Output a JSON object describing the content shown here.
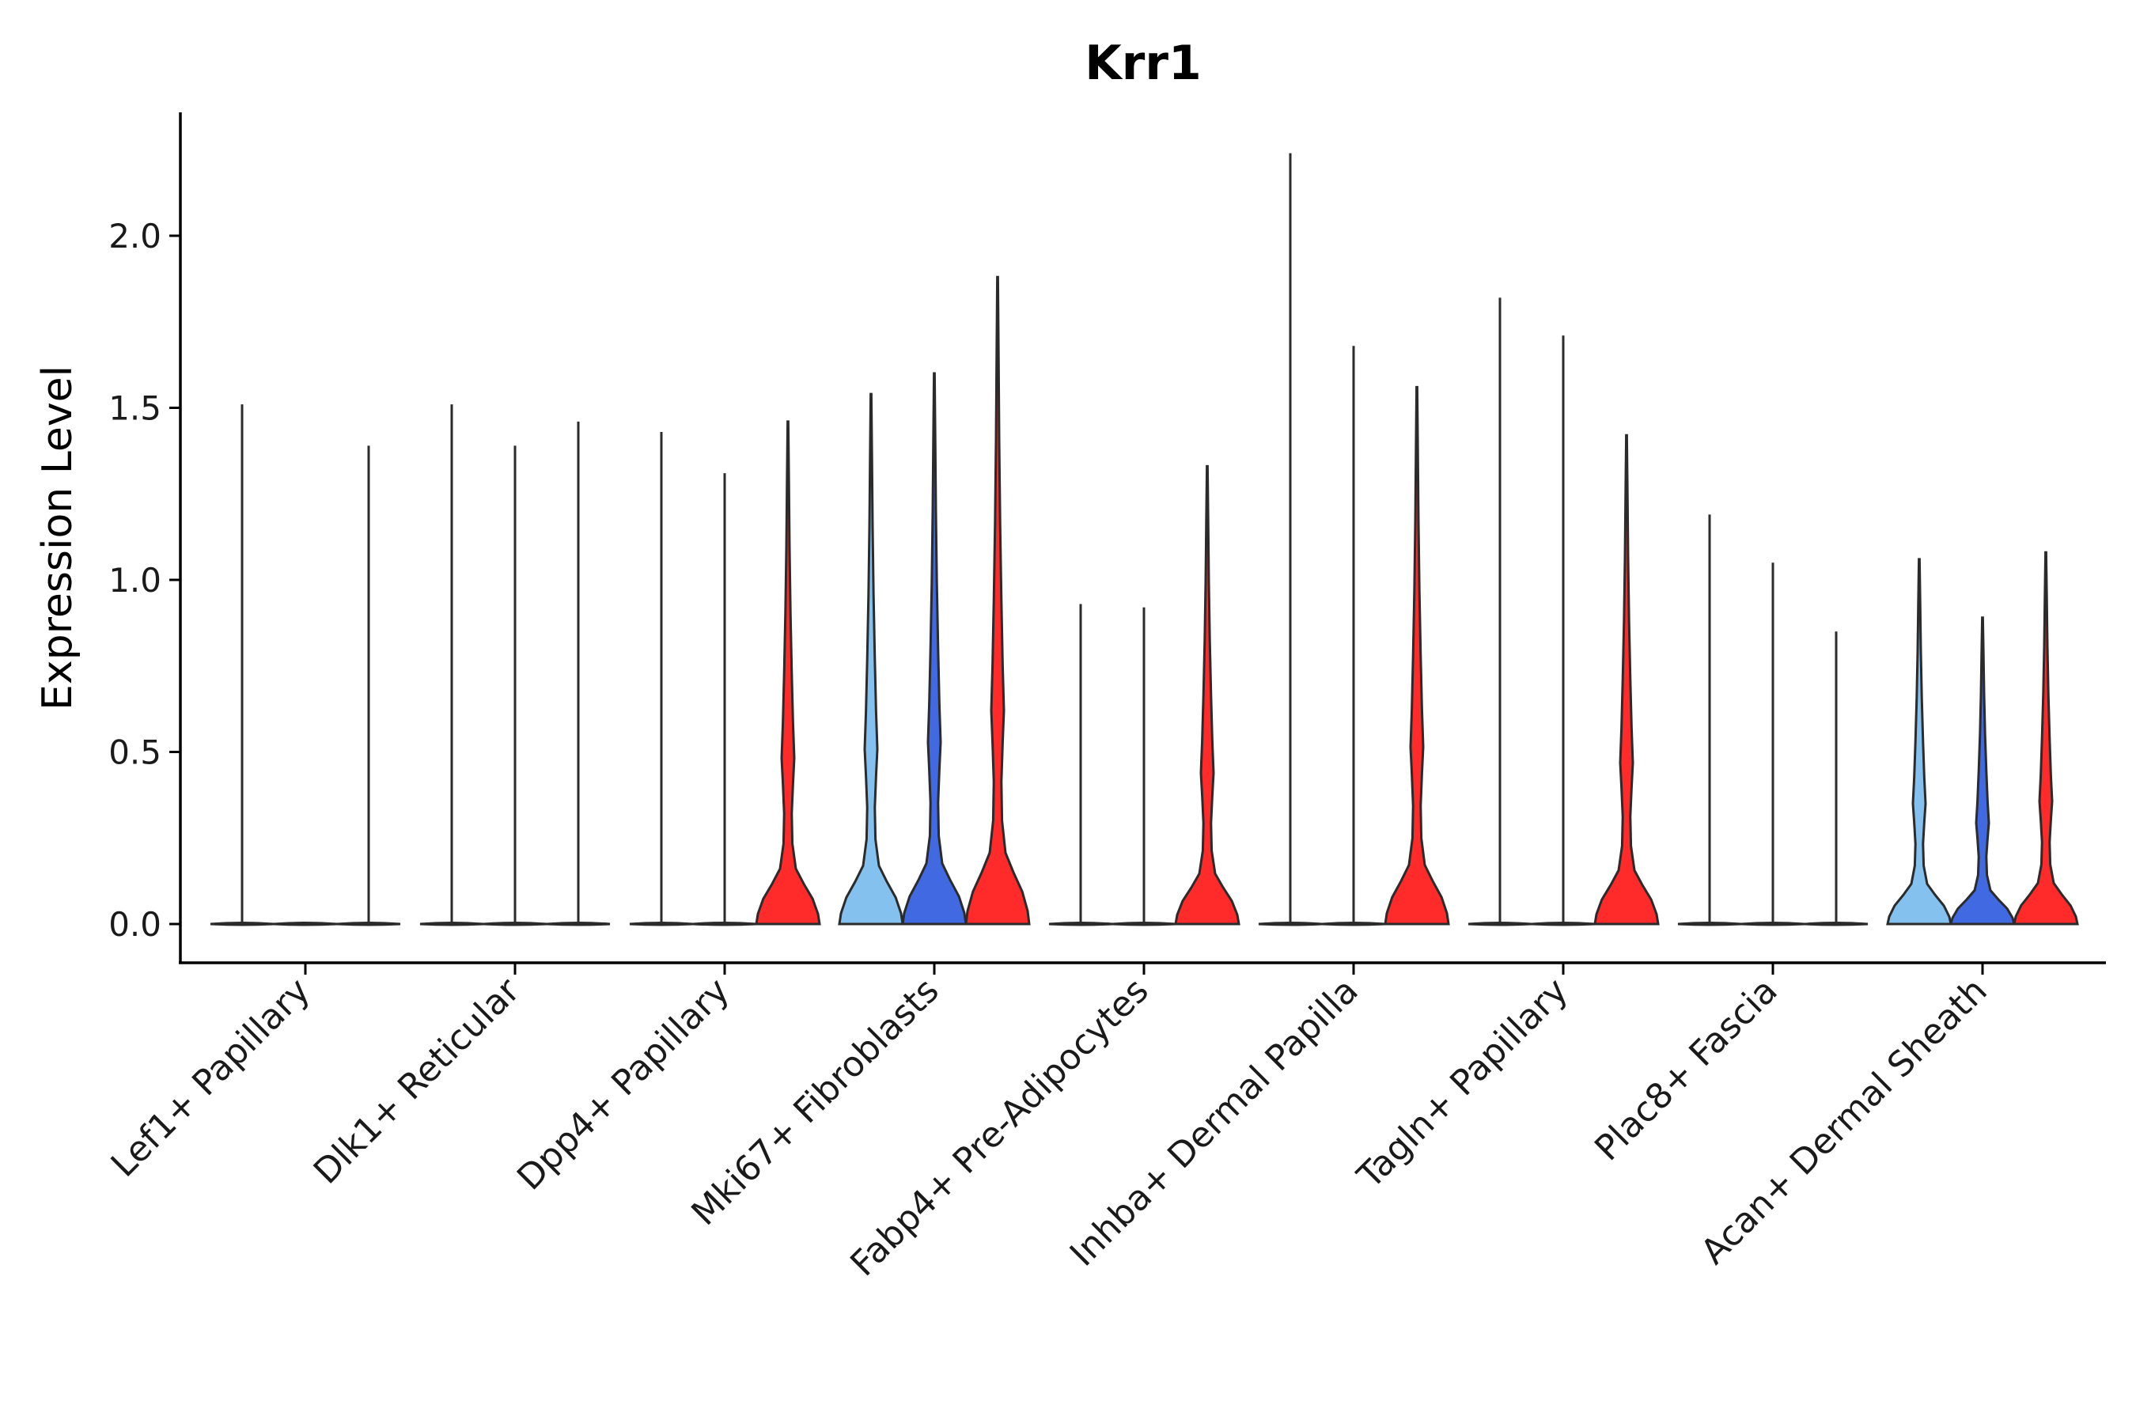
{
  "chart_data": {
    "type": "violin",
    "title": "Krr1",
    "xlabel": "",
    "ylabel": "Expression Level",
    "ylim": [
      -0.11,
      2.35
    ],
    "yticks": [
      0.0,
      0.5,
      1.0,
      1.5,
      2.0
    ],
    "ytick_labels": [
      "0.0",
      "0.5",
      "1.0",
      "1.5",
      "2.0"
    ],
    "group_colors": [
      "#85C1EE",
      "#4169E1",
      "#FF2A2A"
    ],
    "categories": [
      "Lef1+ Papillary",
      "Dlk1+ Reticular",
      "Dpp4+ Papillary",
      "Mki67+ Fibroblasts",
      "Fabp4+ Pre-Adipocytes",
      "Inhba+ Dermal Papilla",
      "Tagln+ Papillary",
      "Plac8+ Fascia",
      "Acan+ Dermal Sheath"
    ],
    "violins": [
      [
        {
          "max": 1.51,
          "mode": "flat"
        },
        {
          "max": 0.0,
          "mode": "flat"
        },
        {
          "max": 1.39,
          "mode": "flat"
        }
      ],
      [
        {
          "max": 1.51,
          "mode": "flat"
        },
        {
          "max": 1.39,
          "mode": "flat"
        },
        {
          "max": 1.46,
          "mode": "flat"
        }
      ],
      [
        {
          "max": 1.43,
          "mode": "flat"
        },
        {
          "max": 1.31,
          "mode": "flat"
        },
        {
          "max": 1.46,
          "mode": "full"
        }
      ],
      [
        {
          "max": 1.54,
          "mode": "full"
        },
        {
          "max": 1.6,
          "mode": "full"
        },
        {
          "max": 1.88,
          "mode": "full"
        }
      ],
      [
        {
          "max": 0.93,
          "mode": "flat"
        },
        {
          "max": 0.92,
          "mode": "flat"
        },
        {
          "max": 1.33,
          "mode": "full"
        }
      ],
      [
        {
          "max": 2.24,
          "mode": "flat"
        },
        {
          "max": 1.68,
          "mode": "flat"
        },
        {
          "max": 1.56,
          "mode": "full"
        }
      ],
      [
        {
          "max": 1.82,
          "mode": "flat"
        },
        {
          "max": 1.71,
          "mode": "flat"
        },
        {
          "max": 1.42,
          "mode": "full"
        }
      ],
      [
        {
          "max": 1.19,
          "mode": "flat"
        },
        {
          "max": 1.05,
          "mode": "flat"
        },
        {
          "max": 0.85,
          "mode": "flat"
        }
      ],
      [
        {
          "max": 1.06,
          "mode": "full"
        },
        {
          "max": 0.89,
          "mode": "full"
        },
        {
          "max": 1.08,
          "mode": "full"
        }
      ]
    ]
  }
}
